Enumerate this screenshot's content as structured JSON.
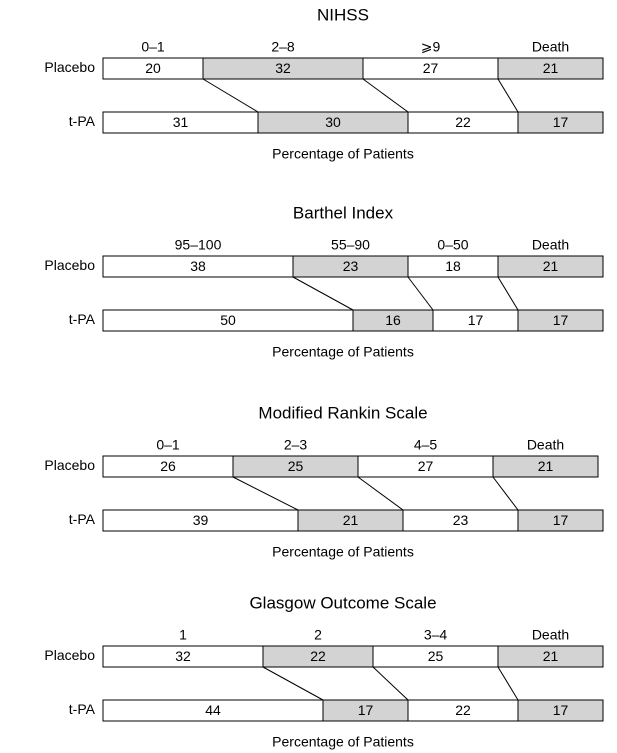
{
  "chart_data": [
    {
      "type": "stacked-bar",
      "title": "NIHSS",
      "x_label": "Percentage of Patients",
      "categories": [
        "Placebo",
        "t-PA"
      ],
      "xlim": [
        0,
        100
      ],
      "series": [
        {
          "name": "0–1",
          "color": "#ffffff",
          "values": [
            20,
            31
          ]
        },
        {
          "name": "2–8",
          "color": "#d3d3d3",
          "values": [
            32,
            30
          ]
        },
        {
          "name": "⩾9",
          "color": "#ffffff",
          "values": [
            27,
            22
          ]
        },
        {
          "name": "Death",
          "color": "#d3d3d3",
          "values": [
            21,
            17
          ]
        }
      ]
    },
    {
      "type": "stacked-bar",
      "title": "Barthel Index",
      "x_label": "Percentage of Patients",
      "categories": [
        "Placebo",
        "t-PA"
      ],
      "xlim": [
        0,
        100
      ],
      "series": [
        {
          "name": "95–100",
          "color": "#ffffff",
          "values": [
            38,
            50
          ]
        },
        {
          "name": "55–90",
          "color": "#d3d3d3",
          "values": [
            23,
            16
          ]
        },
        {
          "name": "0–50",
          "color": "#ffffff",
          "values": [
            18,
            17
          ]
        },
        {
          "name": "Death",
          "color": "#d3d3d3",
          "values": [
            21,
            17
          ]
        }
      ]
    },
    {
      "type": "stacked-bar",
      "title": "Modified Rankin Scale",
      "x_label": "Percentage of Patients",
      "categories": [
        "Placebo",
        "t-PA"
      ],
      "xlim": [
        0,
        100
      ],
      "series": [
        {
          "name": "0–1",
          "color": "#ffffff",
          "values": [
            26,
            39
          ]
        },
        {
          "name": "2–3",
          "color": "#d3d3d3",
          "values": [
            25,
            21
          ]
        },
        {
          "name": "4–5",
          "color": "#ffffff",
          "values": [
            27,
            23
          ]
        },
        {
          "name": "Death",
          "color": "#d3d3d3",
          "values": [
            21,
            17
          ]
        }
      ]
    },
    {
      "type": "stacked-bar",
      "title": "Glasgow Outcome Scale",
      "x_label": "Percentage of Patients",
      "categories": [
        "Placebo",
        "t-PA"
      ],
      "xlim": [
        0,
        100
      ],
      "series": [
        {
          "name": "1",
          "color": "#ffffff",
          "values": [
            32,
            44
          ]
        },
        {
          "name": "2",
          "color": "#d3d3d3",
          "values": [
            22,
            17
          ]
        },
        {
          "name": "3–4",
          "color": "#ffffff",
          "values": [
            25,
            22
          ]
        },
        {
          "name": "Death",
          "color": "#d3d3d3",
          "values": [
            21,
            17
          ]
        }
      ]
    }
  ]
}
